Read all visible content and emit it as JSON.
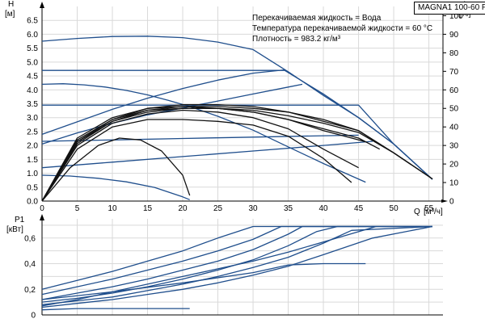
{
  "chart_data": [
    {
      "type": "line",
      "title": "",
      "model": "MAGNA1 100-60 F",
      "info": [
        "Перекачиваемая жидкость = Вода",
        "Температура перекачиваемой жидкости = 60 °C",
        "Плотность = 983.2 кг/м³"
      ],
      "y_symbol": "H",
      "y_unit": "[м]",
      "y2_symbol": "eta",
      "y2_unit": "[%]",
      "x_symbol": "Q",
      "x_unit": "[м³/ч]",
      "xlim": [
        0,
        57
      ],
      "ylim": [
        0,
        7
      ],
      "y2lim": [
        0,
        105
      ],
      "x_ticks": [
        "0",
        "5",
        "10",
        "15",
        "20",
        "25",
        "30",
        "35",
        "40",
        "45",
        "50",
        "55"
      ],
      "y_ticks": [
        "0.0",
        "0.5",
        "1.0",
        "1.5",
        "2.0",
        "2.5",
        "3.0",
        "3.5",
        "4.0",
        "4.5",
        "5.0",
        "5.5",
        "6.0",
        "6.5"
      ],
      "y2_ticks": [
        "0",
        "10",
        "20",
        "30",
        "40",
        "50",
        "60",
        "70",
        "80",
        "90",
        "100"
      ],
      "grid": true,
      "series": [
        {
          "kind": "head",
          "x": [
            0,
            5,
            10,
            15,
            20,
            25,
            30,
            35,
            40,
            45,
            50,
            55.5
          ],
          "y": [
            5.75,
            5.85,
            5.92,
            5.93,
            5.88,
            5.72,
            5.45,
            4.65,
            3.8,
            3.0,
            2.05,
            0.78
          ]
        },
        {
          "kind": "head",
          "x": [
            0,
            3,
            6,
            9,
            12,
            15,
            18,
            21,
            25,
            30,
            35,
            40,
            46
          ],
          "y": [
            4.2,
            4.22,
            4.18,
            4.1,
            3.98,
            3.82,
            3.62,
            3.4,
            3.05,
            2.55,
            1.95,
            1.35,
            0.68
          ]
        },
        {
          "kind": "head",
          "x": [
            0,
            4,
            8,
            12,
            16,
            20,
            21
          ],
          "y": [
            0.93,
            0.9,
            0.82,
            0.69,
            0.49,
            0.15,
            0.05
          ]
        },
        {
          "kind": "head",
          "x": [
            0,
            5,
            10,
            15,
            20,
            25,
            30,
            34.5
          ],
          "y": [
            2.4,
            2.85,
            3.3,
            3.7,
            4.05,
            4.35,
            4.6,
            4.72
          ]
        },
        {
          "kind": "head",
          "x": [
            0,
            5,
            10,
            15,
            20,
            25,
            30,
            35,
            37
          ],
          "y": [
            2.05,
            2.45,
            2.8,
            3.1,
            3.35,
            3.6,
            3.85,
            4.1,
            4.2
          ]
        },
        {
          "kind": "head",
          "x": [
            0,
            10,
            20,
            30,
            40,
            47
          ],
          "y": [
            1.2,
            1.4,
            1.6,
            1.8,
            2.0,
            2.15
          ]
        },
        {
          "kind": "head",
          "x": [
            0,
            10,
            20,
            30,
            40,
            45
          ],
          "y": [
            2.15,
            2.2,
            2.25,
            2.3,
            2.35,
            2.37
          ]
        },
        {
          "kind": "head",
          "x": [
            0,
            5,
            10,
            15,
            20,
            25,
            30,
            35,
            40,
            45,
            50,
            55.5
          ],
          "y": [
            3.45,
            3.45,
            3.45,
            3.45,
            3.45,
            3.45,
            3.45,
            3.45,
            3.45,
            3.45,
            2.05,
            0.78
          ]
        },
        {
          "kind": "head",
          "x": [
            0,
            5,
            10,
            15,
            20,
            25,
            30,
            34.5,
            40,
            45,
            50,
            55.5
          ],
          "y": [
            4.7,
            4.7,
            4.7,
            4.7,
            4.7,
            4.7,
            4.7,
            4.7,
            3.85,
            3.0,
            2.05,
            0.78
          ]
        },
        {
          "kind": "eta",
          "x": [
            0,
            4,
            8,
            11,
            14,
            17,
            20,
            21
          ],
          "y": [
            0,
            18,
            30,
            34,
            33,
            27,
            14,
            3
          ]
        },
        {
          "kind": "eta",
          "x": [
            0,
            5,
            10,
            15,
            20,
            25,
            30,
            35,
            40,
            44
          ],
          "y": [
            0,
            28,
            40,
            44,
            44,
            43,
            41,
            35,
            23,
            10
          ]
        },
        {
          "kind": "eta",
          "x": [
            0,
            5,
            10,
            15,
            20,
            25,
            30,
            35,
            40,
            45
          ],
          "y": [
            0,
            30,
            42,
            47,
            49,
            48,
            45,
            39,
            28,
            18
          ]
        },
        {
          "kind": "eta",
          "x": [
            0,
            5,
            10,
            15,
            20,
            25,
            30,
            35,
            40,
            45,
            46
          ],
          "y": [
            0,
            32,
            43,
            48,
            50,
            50,
            48,
            44,
            38,
            33,
            32
          ]
        },
        {
          "kind": "eta",
          "x": [
            0,
            5,
            10,
            15,
            20,
            25,
            30,
            35,
            40,
            45,
            50,
            55.5
          ],
          "y": [
            0,
            32,
            44,
            50,
            52,
            52,
            51,
            48,
            43,
            38,
            26,
            12
          ]
        },
        {
          "kind": "eta",
          "x": [
            0,
            5,
            10,
            15,
            20,
            25,
            30,
            35,
            40,
            45,
            50,
            55.5
          ],
          "y": [
            0,
            31,
            43,
            49,
            51,
            51,
            50,
            48,
            44,
            38,
            26,
            12
          ]
        },
        {
          "kind": "eta",
          "x": [
            0,
            5,
            10,
            15,
            20,
            25,
            30,
            35,
            40,
            45,
            50,
            55.5
          ],
          "y": [
            0,
            33,
            44,
            49,
            50,
            50,
            49,
            46,
            42,
            37,
            26,
            12
          ]
        },
        {
          "kind": "eta",
          "x": [
            0,
            5,
            10,
            15,
            20,
            25,
            30,
            35,
            40,
            45,
            48
          ],
          "y": [
            0,
            34,
            45,
            50,
            51,
            50,
            48,
            44,
            39,
            34,
            28
          ]
        }
      ]
    },
    {
      "type": "line",
      "title": "",
      "y_symbol": "P1",
      "y_unit": "[кВт]",
      "xlim": [
        0,
        57
      ],
      "ylim": [
        0,
        0.75
      ],
      "y_ticks": [
        "0",
        "0,2",
        "0,4",
        "0,6"
      ],
      "grid": true,
      "series": [
        {
          "x": [
            0,
            5,
            10,
            15,
            20,
            25,
            30,
            35,
            40,
            45,
            55.5
          ],
          "y": [
            0.2,
            0.27,
            0.34,
            0.42,
            0.5,
            0.6,
            0.69,
            0.69,
            0.69,
            0.69,
            0.69
          ]
        },
        {
          "x": [
            0,
            5,
            10,
            15,
            20,
            25,
            30,
            34,
            38,
            44,
            55.5
          ],
          "y": [
            0.16,
            0.22,
            0.28,
            0.35,
            0.42,
            0.5,
            0.59,
            0.69,
            0.69,
            0.69,
            0.69
          ]
        },
        {
          "x": [
            0,
            5,
            10,
            15,
            20,
            25,
            30,
            35,
            37,
            40,
            55.5
          ],
          "y": [
            0.12,
            0.17,
            0.22,
            0.28,
            0.35,
            0.42,
            0.51,
            0.63,
            0.69,
            0.69,
            0.69
          ]
        },
        {
          "x": [
            0,
            5,
            10,
            15,
            20,
            25,
            30,
            35,
            39,
            42,
            55.5
          ],
          "y": [
            0.1,
            0.13,
            0.17,
            0.22,
            0.28,
            0.35,
            0.43,
            0.54,
            0.65,
            0.69,
            0.69
          ]
        },
        {
          "x": [
            0,
            5,
            10,
            15,
            20,
            25,
            30,
            35,
            40,
            44,
            55.5
          ],
          "y": [
            0.08,
            0.11,
            0.14,
            0.19,
            0.24,
            0.3,
            0.37,
            0.45,
            0.56,
            0.66,
            0.69
          ]
        },
        {
          "x": [
            0,
            5,
            10,
            15,
            20,
            25,
            30,
            35,
            40,
            47,
            55.5
          ],
          "y": [
            0.06,
            0.09,
            0.12,
            0.16,
            0.2,
            0.25,
            0.31,
            0.38,
            0.47,
            0.6,
            0.69
          ]
        },
        {
          "x": [
            0,
            5,
            10,
            15,
            20,
            25,
            30,
            35,
            40,
            45,
            47.5
          ],
          "y": [
            0.07,
            0.12,
            0.18,
            0.24,
            0.3,
            0.36,
            0.42,
            0.49,
            0.57,
            0.65,
            0.69
          ]
        },
        {
          "x": [
            0,
            10,
            20,
            30,
            35,
            40,
            46
          ],
          "y": [
            0.12,
            0.18,
            0.25,
            0.33,
            0.39,
            0.4,
            0.4
          ]
        },
        {
          "x": [
            0,
            5,
            10,
            15,
            21
          ],
          "y": [
            0.04,
            0.05,
            0.05,
            0.05,
            0.05
          ]
        }
      ]
    }
  ]
}
